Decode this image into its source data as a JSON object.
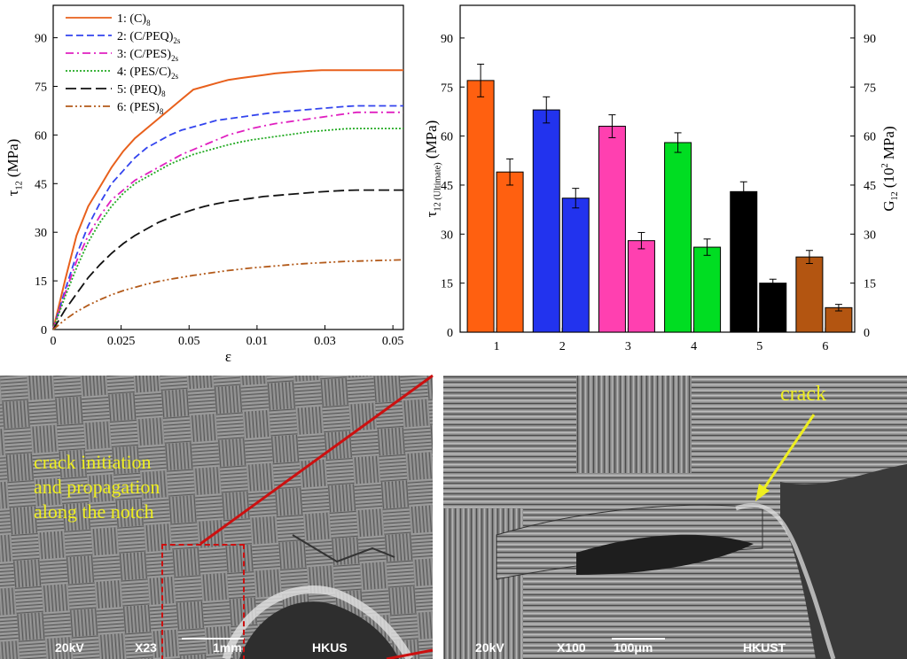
{
  "chart_data": [
    {
      "type": "line",
      "xlabel": "ε",
      "ylabel_main": "τ",
      "ylabel_sub": "12",
      "ylabel_unit": "(MPa)",
      "ylim": [
        0,
        100
      ],
      "yticks": [
        "0",
        "15",
        "30",
        "45",
        "60",
        "75",
        "90"
      ],
      "xticks": [
        "0",
        "0.025",
        "0.05",
        "0.01",
        "0.03",
        "0.05"
      ],
      "x": [
        0,
        0.005,
        0.01,
        0.015,
        0.02,
        0.025,
        0.03,
        0.035,
        0.04,
        0.045,
        0.05,
        0.055,
        0.06,
        0.065,
        0.07,
        0.075,
        0.08,
        0.085,
        0.09,
        0.095,
        0.1,
        0.105,
        0.11,
        0.115,
        0.12,
        0.125,
        0.13,
        0.135,
        0.14,
        0.145,
        0.15
      ],
      "grid": false,
      "legend_position": "top-left",
      "series": [
        {
          "label_main": "1: (C)",
          "label_sub": "8",
          "color": "#E8601C",
          "dash": "solid",
          "values": [
            0,
            15,
            29,
            38,
            44,
            50,
            55,
            59,
            62,
            65,
            68,
            71,
            74,
            75,
            76,
            77,
            77.5,
            78,
            78.5,
            79,
            79.3,
            79.6,
            79.8,
            80,
            80,
            80,
            80,
            80,
            80,
            80,
            80
          ]
        },
        {
          "label_main": "2: (C/PEQ)",
          "label_sub": "2s",
          "color": "#3344EE",
          "dash": "dash",
          "values": [
            0,
            12,
            23,
            32,
            39,
            45,
            49,
            53,
            56,
            58,
            60,
            61.5,
            62.5,
            63.5,
            64.5,
            65,
            65.5,
            66,
            66.5,
            67,
            67.3,
            67.6,
            67.9,
            68.2,
            68.5,
            68.8,
            69,
            69,
            69,
            69,
            69
          ]
        },
        {
          "label_main": "3: (C/PES)",
          "label_sub": "2s",
          "color": "#E020C0",
          "dash": "dashdot",
          "values": [
            0,
            11,
            21,
            29,
            35,
            40,
            43,
            46,
            48,
            50,
            52,
            54,
            55.5,
            57,
            58.5,
            60,
            61,
            62,
            62.8,
            63.5,
            64,
            64.5,
            65,
            65.5,
            66,
            66.5,
            67,
            67,
            67,
            67,
            67
          ]
        },
        {
          "label_main": "4: (PES/C)",
          "label_sub": "2s",
          "color": "#22AA22",
          "dash": "dot",
          "values": [
            0,
            10,
            19,
            27,
            33,
            38,
            42,
            45,
            47,
            49,
            51,
            52.5,
            54,
            55,
            56,
            57,
            57.8,
            58.5,
            59,
            59.5,
            60,
            60.5,
            61,
            61.3,
            61.6,
            61.9,
            62,
            62,
            62,
            62,
            62
          ]
        },
        {
          "label_main": "5: (PEQ)",
          "label_sub": "8",
          "color": "#111111",
          "dash": "longdash",
          "values": [
            0,
            6,
            11,
            16,
            20,
            23.5,
            26.5,
            29,
            31,
            33,
            34.5,
            35.8,
            37,
            38,
            38.8,
            39.5,
            40,
            40.5,
            41,
            41.3,
            41.6,
            41.9,
            42.2,
            42.5,
            42.7,
            42.9,
            43,
            43,
            43,
            43,
            43
          ]
        },
        {
          "label_main": "6: (PES)",
          "label_sub": "8",
          "color": "#B35A1A",
          "dash": "dashdotdot",
          "values": [
            0,
            3,
            5.5,
            7.5,
            9.2,
            10.7,
            12,
            13,
            14,
            14.8,
            15.5,
            16.1,
            16.7,
            17.2,
            17.7,
            18.2,
            18.6,
            19,
            19.3,
            19.6,
            19.9,
            20.2,
            20.4,
            20.6,
            20.8,
            21,
            21.1,
            21.2,
            21.3,
            21.4,
            21.5
          ]
        }
      ]
    },
    {
      "type": "bar",
      "categories": [
        "1",
        "2",
        "3",
        "4",
        "5",
        "6"
      ],
      "colors": [
        "#FF6010",
        "#2233EE",
        "#FF40B0",
        "#00DD22",
        "#000000",
        "#B35511"
      ],
      "ylabel_left_main": "τ",
      "ylabel_left_sub": "12 (Ultimate)",
      "ylabel_left_unit": "(MPa)",
      "ylabel_right_main": "G",
      "ylabel_right_sub": "12",
      "ylabel_right_rest": "(10",
      "ylabel_right_sup": "2",
      "ylabel_right_unit": "MPa)",
      "ylim": [
        0,
        100
      ],
      "yticks": [
        "0",
        "15",
        "30",
        "45",
        "60",
        "75",
        "90"
      ],
      "series": [
        {
          "metric": "τ12 (Ultimate)",
          "values": [
            77,
            68,
            63,
            58,
            43,
            23
          ],
          "errors": [
            5,
            4,
            3.5,
            3,
            3,
            2
          ]
        },
        {
          "metric": "G12",
          "values": [
            49,
            41,
            28,
            26,
            15,
            7.5
          ],
          "errors": [
            4,
            3,
            2.5,
            2.5,
            1.2,
            1
          ]
        }
      ]
    }
  ],
  "micrographs": {
    "left": {
      "annotation_lines": [
        "crack  initiation",
        "and propagation",
        "along the notch"
      ],
      "info_voltage": "20kV",
      "info_mag": "X23",
      "info_scale": "1mm",
      "info_lab": "HKUS"
    },
    "right": {
      "annotation": "crack",
      "info_voltage": "20kV",
      "info_mag": "X100",
      "info_scale": "100μm",
      "info_lab": "HKUST"
    },
    "colors": {
      "annotation": "#EEEE20",
      "zoom_box": "#CC1010"
    }
  }
}
